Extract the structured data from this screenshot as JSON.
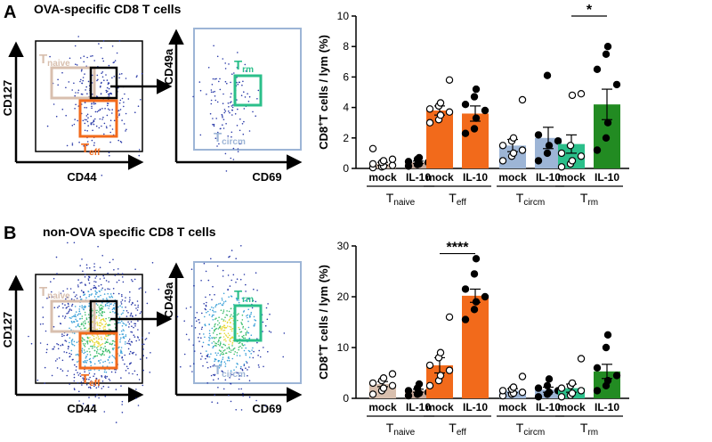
{
  "panels": [
    {
      "letter": "A",
      "title": "OVA-specific CD8 T cells",
      "flow_left": {
        "xlabel": "CD44",
        "ylabel": "CD127",
        "gate_naive": "T",
        "gate_naive_sub": "naive",
        "gate_eff": "T",
        "gate_eff_sub": "eff"
      },
      "flow_right": {
        "xlabel": "CD69",
        "ylabel": "CD49a",
        "gate_rm": "T",
        "gate_rm_sub": "rm",
        "gate_circm": "T",
        "gate_circm_sub": "circm"
      }
    },
    {
      "letter": "B",
      "title": "non-OVA specific CD8 T cells",
      "flow_left": {
        "xlabel": "CD44",
        "ylabel": "CD127",
        "gate_naive": "T",
        "gate_naive_sub": "naive",
        "gate_eff": "T",
        "gate_eff_sub": "eff"
      },
      "flow_right": {
        "xlabel": "CD69",
        "ylabel": "CD49a",
        "gate_rm": "T",
        "gate_rm_sub": "rm",
        "gate_circm": "T",
        "gate_circm_sub": "circm"
      }
    }
  ],
  "colors": {
    "naive": "#d8bfae",
    "eff": "#f26a1b",
    "circm": "#9db5d6",
    "rm": "#2bbf8a",
    "rm_il10": "#228b22",
    "il10_naive": "#c8a898"
  },
  "chart_data": [
    {
      "type": "bar",
      "ylabel": "CD8+T cells / lym (%)",
      "ylabel_main": "CD8",
      "ylabel_sup": "+",
      "ylabel_rest": "T cells / lym (%)",
      "ylim": [
        0,
        10
      ],
      "yticks": [
        0,
        2,
        4,
        6,
        8,
        10
      ],
      "groups": [
        {
          "label": "T",
          "sub": "naive",
          "bars": [
            {
              "name": "mock",
              "value": 0.3,
              "err": 0.1,
              "color_key": "naive",
              "filled": false,
              "points": [
                0.05,
                0.1,
                0.15,
                0.2,
                0.3,
                0.4,
                0.5,
                0.6,
                1.3
              ]
            },
            {
              "name": "IL-10",
              "value": 0.4,
              "err": 0.08,
              "color_key": "il10_naive",
              "filled": true,
              "points": [
                0.15,
                0.25,
                0.3,
                0.4,
                0.45,
                0.6,
                0.7
              ]
            }
          ]
        },
        {
          "label": "T",
          "sub": "eff",
          "bars": [
            {
              "name": "mock",
              "value": 3.8,
              "err": 0.3,
              "color_key": "eff",
              "filled": false,
              "points": [
                3.0,
                3.2,
                3.5,
                3.7,
                3.9,
                4.1,
                4.3,
                5.8
              ]
            },
            {
              "name": "IL-10",
              "value": 3.6,
              "err": 0.5,
              "color_key": "eff",
              "filled": true,
              "points": [
                2.3,
                2.6,
                3.3,
                3.8,
                4.2,
                4.7,
                5.2
              ]
            }
          ]
        },
        {
          "label": "T",
          "sub": "circm",
          "bars": [
            {
              "name": "mock",
              "value": 1.5,
              "err": 0.4,
              "color_key": "circm",
              "filled": false,
              "points": [
                0.5,
                0.8,
                1.0,
                1.2,
                1.5,
                1.8,
                2.0,
                4.5
              ]
            },
            {
              "name": "IL-10",
              "value": 2.0,
              "err": 0.7,
              "color_key": "circm",
              "filled": true,
              "points": [
                0.5,
                1.0,
                1.5,
                1.8,
                2.2,
                6.1
              ]
            }
          ]
        },
        {
          "label": "T",
          "sub": "rm",
          "bars": [
            {
              "name": "mock",
              "value": 1.6,
              "err": 0.6,
              "color_key": "rm",
              "filled": false,
              "points": [
                0.1,
                0.3,
                0.5,
                0.8,
                1.0,
                1.5,
                4.8,
                4.9
              ]
            },
            {
              "name": "IL-10",
              "value": 4.2,
              "err": 1.0,
              "color_key": "rm_il10",
              "filled": true,
              "points": [
                1.2,
                2.0,
                3.0,
                5.5,
                6.5,
                7.5,
                8.0
              ]
            }
          ]
        }
      ],
      "significance": [
        {
          "group": 3,
          "label": "*",
          "level": 10
        }
      ]
    },
    {
      "type": "bar",
      "ylabel": "CD8+T cells / lym (%)",
      "ylabel_main": "CD8",
      "ylabel_sup": "+",
      "ylabel_rest": "T cells / lym (%)",
      "ylim": [
        0,
        30
      ],
      "yticks": [
        0,
        10,
        20,
        30
      ],
      "groups": [
        {
          "label": "T",
          "sub": "naive",
          "bars": [
            {
              "name": "mock",
              "value": 2.8,
              "err": 0.5,
              "color_key": "naive",
              "filled": false,
              "points": [
                0.8,
                1.5,
                2.0,
                2.5,
                3.0,
                3.5,
                4.0,
                4.8
              ]
            },
            {
              "name": "IL-10",
              "value": 1.5,
              "err": 0.3,
              "color_key": "il10_naive",
              "filled": true,
              "points": [
                0.5,
                0.8,
                1.0,
                1.2,
                1.5,
                2.0,
                2.8
              ]
            }
          ]
        },
        {
          "label": "T",
          "sub": "eff",
          "bars": [
            {
              "name": "mock",
              "value": 6.5,
              "err": 1.5,
              "color_key": "eff",
              "filled": false,
              "points": [
                2.5,
                3.5,
                4.5,
                5.5,
                6.5,
                8.0,
                9.0,
                16.0
              ]
            },
            {
              "name": "IL-10",
              "value": 20.2,
              "err": 1.3,
              "color_key": "eff",
              "filled": true,
              "points": [
                15.5,
                17.5,
                19.0,
                20.0,
                21.5,
                24.5,
                27.5
              ]
            }
          ]
        },
        {
          "label": "T",
          "sub": "circm",
          "bars": [
            {
              "name": "mock",
              "value": 1.5,
              "err": 0.4,
              "color_key": "circm",
              "filled": false,
              "points": [
                0.5,
                0.8,
                1.0,
                1.2,
                1.5,
                1.8,
                2.2,
                4.3
              ]
            },
            {
              "name": "IL-10",
              "value": 1.7,
              "err": 0.5,
              "color_key": "circm",
              "filled": true,
              "points": [
                0.3,
                0.8,
                1.2,
                1.5,
                2.0,
                2.5,
                3.8
              ]
            }
          ]
        },
        {
          "label": "T",
          "sub": "rm",
          "bars": [
            {
              "name": "mock",
              "value": 2.0,
              "err": 0.8,
              "color_key": "rm",
              "filled": false,
              "points": [
                0.3,
                0.6,
                1.0,
                1.5,
                2.0,
                2.5,
                3.0,
                7.8
              ]
            },
            {
              "name": "IL-10",
              "value": 5.3,
              "err": 1.4,
              "color_key": "rm_il10",
              "filled": true,
              "points": [
                1.5,
                2.5,
                3.5,
                4.5,
                6.0,
                10.0,
                12.5
              ]
            }
          ]
        }
      ],
      "significance": [
        {
          "group": 1,
          "label": "****",
          "level": 28.5
        }
      ]
    }
  ]
}
